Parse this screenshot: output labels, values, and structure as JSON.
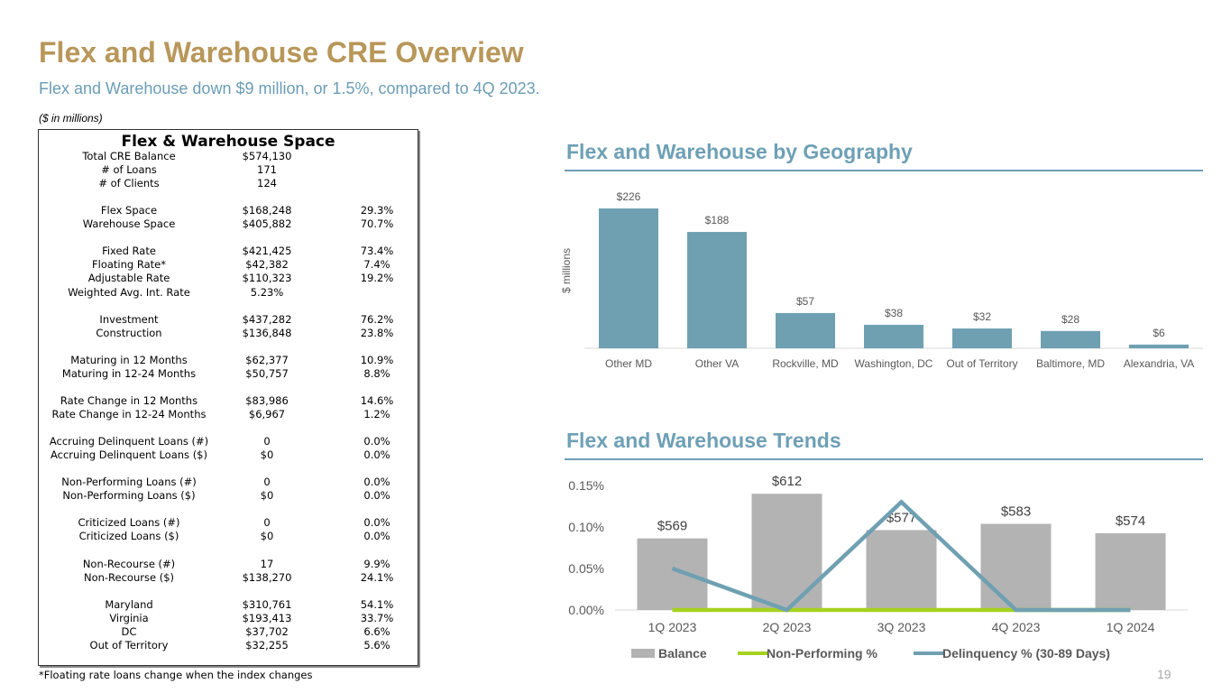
{
  "header": {
    "title": "Flex and Warehouse CRE Overview",
    "subtitle": "Flex and Warehouse down $9 million, or 1.5%, compared to 4Q 2023.",
    "units_note": "($ in millions)"
  },
  "table": {
    "title": "Flex & Warehouse Space",
    "rows": [
      [
        "Total CRE Balance",
        "$574,130",
        ""
      ],
      [
        "# of Loans",
        "171",
        ""
      ],
      [
        "# of Clients",
        "124",
        ""
      ],
      [
        "",
        "",
        ""
      ],
      [
        "Flex Space",
        "$168,248",
        "29.3%"
      ],
      [
        "Warehouse Space",
        "$405,882",
        "70.7%"
      ],
      [
        "",
        "",
        ""
      ],
      [
        "Fixed Rate",
        "$421,425",
        "73.4%"
      ],
      [
        "Floating Rate*",
        "$42,382",
        "7.4%"
      ],
      [
        "Adjustable Rate",
        "$110,323",
        "19.2%"
      ],
      [
        "Weighted Avg. Int. Rate",
        "5.23%",
        ""
      ],
      [
        "",
        "",
        ""
      ],
      [
        "Investment",
        "$437,282",
        "76.2%"
      ],
      [
        "Construction",
        "$136,848",
        "23.8%"
      ],
      [
        "",
        "",
        ""
      ],
      [
        "Maturing in 12 Months",
        "$62,377",
        "10.9%"
      ],
      [
        "Maturing in 12-24 Months",
        "$50,757",
        "8.8%"
      ],
      [
        "",
        "",
        ""
      ],
      [
        "Rate Change in 12 Months",
        "$83,986",
        "14.6%"
      ],
      [
        "Rate Change in 12-24 Months",
        "$6,967",
        "1.2%"
      ],
      [
        "",
        "",
        ""
      ],
      [
        "Accruing Delinquent Loans (#)",
        "0",
        "0.0%"
      ],
      [
        "Accruing Delinquent Loans ($)",
        "$0",
        "0.0%"
      ],
      [
        "",
        "",
        ""
      ],
      [
        "Non-Performing Loans (#)",
        "0",
        "0.0%"
      ],
      [
        "Non-Performing Loans ($)",
        "$0",
        "0.0%"
      ],
      [
        "",
        "",
        ""
      ],
      [
        "Criticized Loans (#)",
        "0",
        "0.0%"
      ],
      [
        "Criticized Loans ($)",
        "$0",
        "0.0%"
      ],
      [
        "",
        "",
        ""
      ],
      [
        "Non-Recourse (#)",
        "17",
        "9.9%"
      ],
      [
        "Non-Recourse ($)",
        "$138,270",
        "24.1%"
      ],
      [
        "",
        "",
        ""
      ],
      [
        "Maryland",
        "$310,761",
        "54.1%"
      ],
      [
        "Virginia",
        "$193,413",
        "33.7%"
      ],
      [
        "DC",
        "$37,702",
        "6.6%"
      ],
      [
        "Out of Territory",
        "$32,255",
        "5.6%"
      ]
    ],
    "footnote": "*Floating rate loans change when the index changes"
  },
  "page_number": "19",
  "geo_section_title": "Flex and Warehouse by Geography",
  "trends_section_title": "Flex and Warehouse Trends",
  "chart_data": [
    {
      "type": "bar",
      "title": "Flex and Warehouse by Geography",
      "ylabel": "$ millions",
      "categories": [
        "Other MD",
        "Other VA",
        "Rockville, MD",
        "Washington, DC",
        "Out of Territory",
        "Baltimore, MD",
        "Alexandria, VA"
      ],
      "values": [
        226,
        188,
        57,
        38,
        32,
        28,
        6
      ],
      "data_labels": [
        "$226",
        "$188",
        "$57",
        "$38",
        "$32",
        "$28",
        "$6"
      ],
      "ylim": [
        0,
        226
      ],
      "color": "#6fa0b2",
      "grid": false
    },
    {
      "type": "bar",
      "title": "Flex and Warehouse Trends",
      "categories": [
        "1Q 2023",
        "2Q 2023",
        "3Q 2023",
        "4Q 2023",
        "1Q 2024"
      ],
      "ylim": [
        0,
        0.15
      ],
      "yticks": [
        "0.00%",
        "0.05%",
        "0.10%",
        "0.15%"
      ],
      "bar_ylim": [
        500,
        620
      ],
      "legend": "bottom",
      "series": [
        {
          "name": "Balance",
          "type": "bar",
          "values": [
            569,
            612,
            577,
            583,
            574
          ],
          "labels": [
            "$569",
            "$612",
            "$577",
            "$583",
            "$574"
          ],
          "color": "#b3b3b3"
        },
        {
          "name": "Non-Performing %",
          "type": "line",
          "values": [
            0,
            0,
            0,
            0,
            0
          ],
          "color": "#a5d11f"
        },
        {
          "name": "Delinquency % (30-89 Days)",
          "type": "line",
          "values": [
            0.05,
            0,
            0.13,
            0,
            0
          ],
          "color": "#6fa0b2"
        }
      ]
    }
  ]
}
